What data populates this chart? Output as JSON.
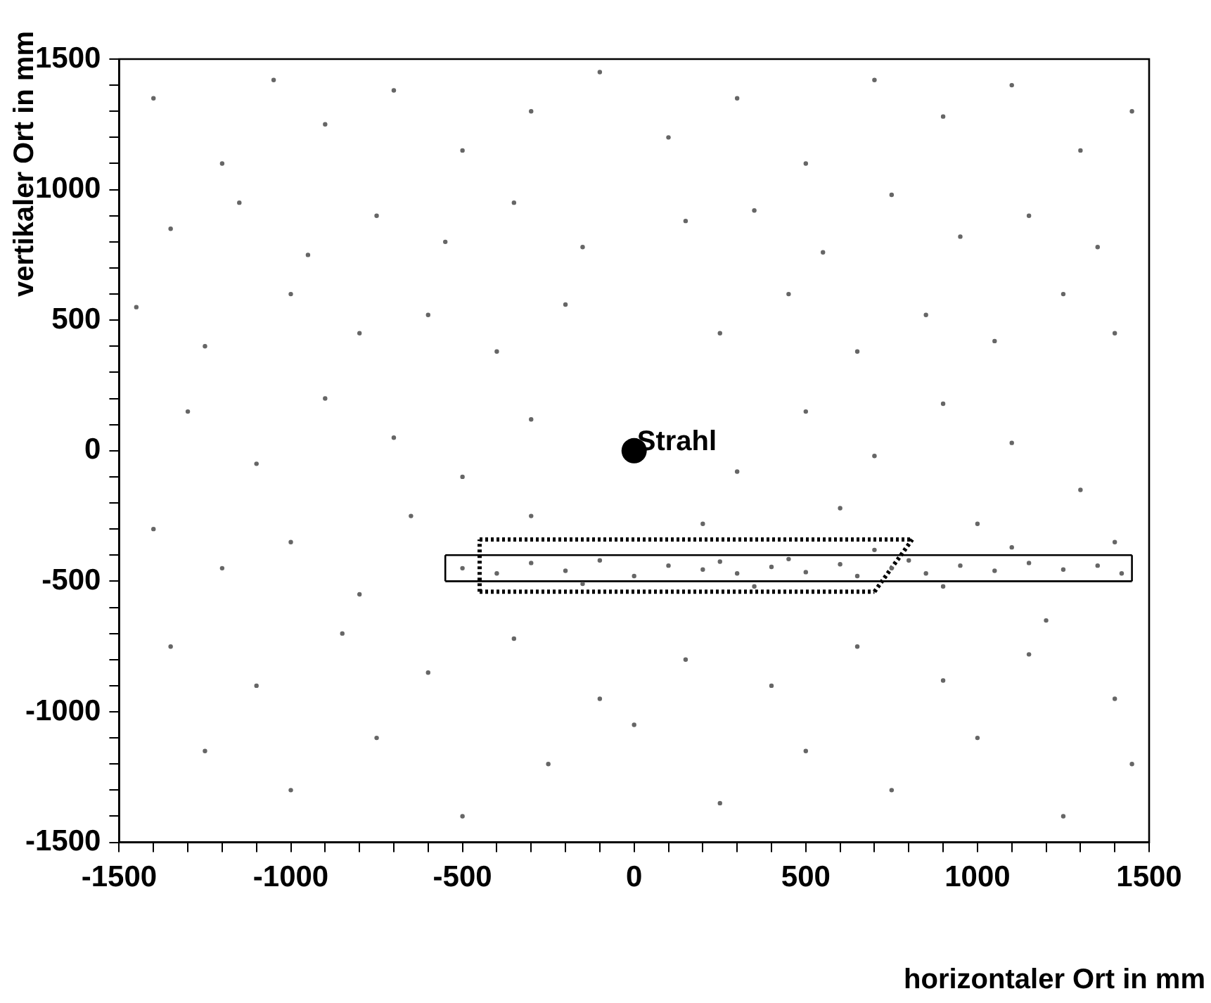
{
  "chart_data": {
    "type": "scatter",
    "xlabel": "horizontaler Ort in mm",
    "ylabel": "vertikaler Ort in mm",
    "xlim": [
      -1500,
      1500
    ],
    "ylim": [
      -1500,
      1500
    ],
    "xticks": [
      -1500,
      {
        "value": -1400,
        "label": null
      },
      {
        "value": -1300,
        "label": null
      },
      {
        "value": -1200,
        "label": null
      },
      {
        "value": -1100,
        "label": null
      },
      -1000,
      {
        "value": -900,
        "label": null
      },
      {
        "value": -800,
        "label": null
      },
      {
        "value": -700,
        "label": null
      },
      {
        "value": -600,
        "label": null
      },
      -500,
      {
        "value": -400,
        "label": null
      },
      {
        "value": -300,
        "label": null
      },
      {
        "value": -200,
        "label": null
      },
      {
        "value": -100,
        "label": null
      },
      0,
      {
        "value": 100,
        "label": null
      },
      {
        "value": 200,
        "label": null
      },
      {
        "value": 300,
        "label": null
      },
      {
        "value": 400,
        "label": null
      },
      500,
      {
        "value": 600,
        "label": null
      },
      {
        "value": 700,
        "label": null
      },
      {
        "value": 800,
        "label": null
      },
      {
        "value": 900,
        "label": null
      },
      1000,
      {
        "value": 1100,
        "label": null
      },
      {
        "value": 1200,
        "label": null
      },
      {
        "value": 1300,
        "label": null
      },
      {
        "value": 1400,
        "label": null
      },
      1500
    ],
    "yticks": [
      -1500,
      {
        "value": -1400,
        "label": null
      },
      {
        "value": -1300,
        "label": null
      },
      {
        "value": -1200,
        "label": null
      },
      {
        "value": -1100,
        "label": null
      },
      -1000,
      {
        "value": -900,
        "label": null
      },
      {
        "value": -800,
        "label": null
      },
      {
        "value": -700,
        "label": null
      },
      {
        "value": -600,
        "label": null
      },
      -500,
      {
        "value": -400,
        "label": null
      },
      {
        "value": -300,
        "label": null
      },
      {
        "value": -200,
        "label": null
      },
      {
        "value": -100,
        "label": null
      },
      0,
      {
        "value": 100,
        "label": null
      },
      {
        "value": 200,
        "label": null
      },
      {
        "value": 300,
        "label": null
      },
      {
        "value": 400,
        "label": null
      },
      500,
      {
        "value": 600,
        "label": null
      },
      {
        "value": 700,
        "label": null
      },
      {
        "value": 800,
        "label": null
      },
      {
        "value": 900,
        "label": null
      },
      1000,
      {
        "value": 1100,
        "label": null
      },
      {
        "value": 1200,
        "label": null
      },
      {
        "value": 1300,
        "label": null
      },
      {
        "value": 1400,
        "label": null
      },
      1500
    ],
    "grid": false,
    "legend": false,
    "series": [
      {
        "color": "#666666",
        "marker": "circle",
        "x": [
          -1400,
          -1200,
          -1050,
          -900,
          -700,
          -500,
          -300,
          -100,
          100,
          300,
          500,
          700,
          900,
          1100,
          1300,
          1450,
          -1350,
          -1150,
          -950,
          -750,
          -550,
          -350,
          -150,
          150,
          350,
          550,
          750,
          950,
          1150,
          1350,
          -1450,
          -1250,
          -1000,
          -800,
          -600,
          -400,
          -200,
          250,
          450,
          650,
          850,
          1050,
          1250,
          1400,
          -1300,
          -1100,
          -900,
          -700,
          -500,
          -300,
          300,
          500,
          700,
          900,
          1100,
          1300,
          -1400,
          -1200,
          -1000,
          -800,
          -650,
          -300,
          200,
          600,
          1000,
          1200,
          1400,
          -1350,
          -1100,
          -850,
          -600,
          -350,
          -100,
          150,
          400,
          650,
          900,
          1150,
          1400,
          -1250,
          -1000,
          -750,
          -500,
          -250,
          0,
          250,
          500,
          750,
          1000,
          1250,
          1450,
          -500,
          -400,
          -300,
          -200,
          -100,
          0,
          100,
          200,
          250,
          300,
          400,
          450,
          500,
          600,
          650,
          750,
          800,
          850,
          950,
          1050,
          1150,
          1250,
          1350,
          1420,
          -150,
          350,
          700,
          900,
          1100
        ],
        "values": [
          1350,
          1100,
          1420,
          1250,
          1380,
          1150,
          1300,
          1450,
          1200,
          1350,
          1100,
          1420,
          1280,
          1400,
          1150,
          1300,
          850,
          950,
          750,
          900,
          800,
          950,
          780,
          880,
          920,
          760,
          980,
          820,
          900,
          780,
          550,
          400,
          600,
          450,
          520,
          380,
          560,
          450,
          600,
          380,
          520,
          420,
          600,
          450,
          150,
          -50,
          200,
          50,
          -100,
          120,
          -80,
          150,
          -20,
          180,
          30,
          -150,
          -300,
          -450,
          -350,
          -550,
          -250,
          -250,
          -280,
          -220,
          -280,
          -650,
          -350,
          -750,
          -900,
          -700,
          -850,
          -720,
          -950,
          -800,
          -900,
          -750,
          -880,
          -780,
          -950,
          -1150,
          -1300,
          -1100,
          -1400,
          -1200,
          -1050,
          -1350,
          -1150,
          -1300,
          -1100,
          -1400,
          -1200,
          -450,
          -470,
          -430,
          -460,
          -420,
          -480,
          -440,
          -455,
          -425,
          -470,
          -445,
          -415,
          -465,
          -435,
          -480,
          -450,
          -420,
          -470,
          -440,
          -460,
          -430,
          -455,
          -440,
          -470,
          -510,
          -520,
          -380,
          -520,
          -370
        ]
      },
      {
        "type": "line",
        "color": "#000000",
        "line_style": "solid",
        "marker": "none",
        "x": [
          -550,
          1450
        ],
        "values": [
          -500,
          -500
        ]
      },
      {
        "type": "line",
        "color": "#000000",
        "line_style": "solid",
        "marker": "none",
        "x": [
          -550,
          1450
        ],
        "values": [
          -400,
          -400
        ]
      },
      {
        "type": "line",
        "color": "#000000",
        "line_style": "solid",
        "marker": "none",
        "x": [
          -550,
          -550
        ],
        "values": [
          -500,
          -400
        ]
      },
      {
        "type": "line",
        "color": "#000000",
        "line_style": "solid",
        "marker": "none",
        "x": [
          1450,
          1450
        ],
        "values": [
          -500,
          -400
        ]
      },
      {
        "type": "line",
        "color": "#000000",
        "line_style": "dotted",
        "marker": "none",
        "x": [
          -450,
          810
        ],
        "values": [
          -340,
          -340
        ]
      },
      {
        "type": "line",
        "color": "#000000",
        "line_style": "dotted",
        "marker": "none",
        "x": [
          -450,
          700
        ],
        "values": [
          -540,
          -540
        ]
      },
      {
        "type": "line",
        "color": "#000000",
        "line_style": "dotted",
        "marker": "none",
        "x": [
          -450,
          -450
        ],
        "values": [
          -540,
          -340
        ]
      },
      {
        "type": "line",
        "color": "#000000",
        "line_style": "dotted",
        "marker": "none",
        "x": [
          700,
          810
        ],
        "values": [
          -540,
          -340
        ]
      },
      {
        "name": "Strahl",
        "color": "#000000",
        "marker": "circle",
        "x": [
          0
        ],
        "values": [
          0
        ]
      }
    ]
  }
}
